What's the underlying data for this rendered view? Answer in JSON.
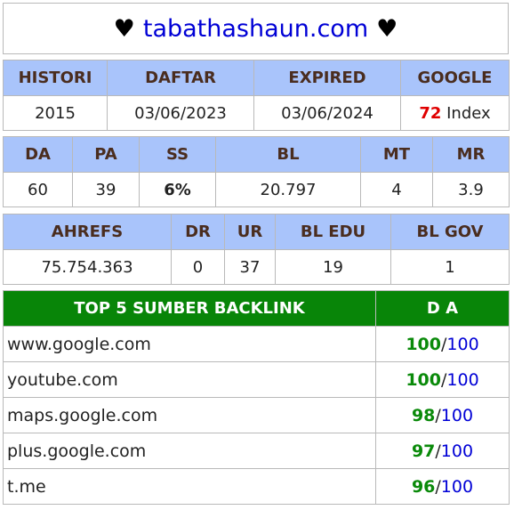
{
  "title": {
    "heart_left": "♥",
    "domain": "tabathashaun.com",
    "heart_right": "♥"
  },
  "row1": {
    "headers": [
      "HISTORI",
      "DAFTAR",
      "EXPIRED",
      "GOOGLE"
    ],
    "histori": "2015",
    "daftar": "03/06/2023",
    "expired": "03/06/2024",
    "google_count": "72",
    "google_suffix": " Index"
  },
  "row2": {
    "headers": [
      "DA",
      "PA",
      "SS",
      "BL",
      "MT",
      "MR"
    ],
    "da": "60",
    "pa": "39",
    "ss": "6%",
    "bl": "20.797",
    "mt": "4",
    "mr": "3.9"
  },
  "row3": {
    "headers": [
      "AHREFS",
      "DR",
      "UR",
      "BL EDU",
      "BL GOV"
    ],
    "ahrefs": "75.754.363",
    "dr": "0",
    "ur": "37",
    "bl_edu": "19",
    "bl_gov": "1"
  },
  "backlinks": {
    "header_source": "TOP 5 SUMBER BACKLINK",
    "header_da": "D A",
    "separator": "/",
    "rows": [
      {
        "source": "www.google.com",
        "da": "100",
        "max": "100"
      },
      {
        "source": "youtube.com",
        "da": "100",
        "max": "100"
      },
      {
        "source": "maps.google.com",
        "da": "98",
        "max": "100"
      },
      {
        "source": "plus.google.com",
        "da": "97",
        "max": "100"
      },
      {
        "source": "t.me",
        "da": "96",
        "max": "100"
      }
    ]
  },
  "colors": {
    "header_blue": "#a9c4fb",
    "header_green": "#088508",
    "accent_red": "#e00000",
    "accent_green": "#0a8a0a",
    "link_blue": "#0000d6"
  }
}
